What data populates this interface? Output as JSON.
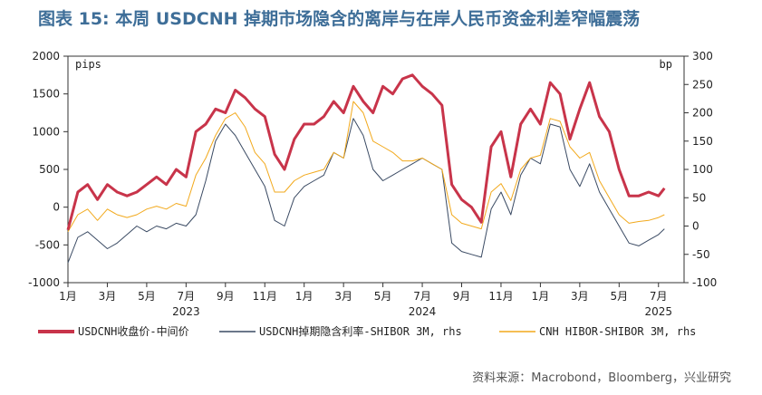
{
  "title": "图表 15: 本周 USDCNH 掉期市场隐含的离岸与在岸人民币资金利差窄幅震荡",
  "source": "资料来源：Macrobond，Bloomberg，兴业研究",
  "colors": {
    "series1": "#c8344a",
    "series2": "#3a4a63",
    "series3": "#f2a91c"
  },
  "chart_data": {
    "type": "line",
    "left_axis": {
      "unit": "pips",
      "min": -1000,
      "max": 2000,
      "ticks": [
        2000,
        1500,
        1000,
        500,
        0,
        -500,
        -1000
      ]
    },
    "right_axis": {
      "unit": "bp",
      "min": -100,
      "max": 300,
      "ticks": [
        300,
        250,
        200,
        150,
        100,
        50,
        0,
        -50,
        -100
      ]
    },
    "x_ticks": [
      "1月",
      "3月",
      "5月",
      "7月",
      "9月",
      "11月",
      "1月",
      "3月",
      "5月",
      "7月",
      "9月",
      "11月",
      "1月",
      "3月",
      "5月",
      "7月"
    ],
    "x_ticks_month": [
      0,
      2,
      4,
      6,
      8,
      10,
      12,
      14,
      16,
      18,
      20,
      22,
      24,
      26,
      28,
      30
    ],
    "year_labels": [
      "2023",
      "2024",
      "2025"
    ],
    "year_labels_month": [
      6,
      18,
      30
    ],
    "x_unit": "months since Jan 2023",
    "series": [
      {
        "name": "USDCNH收盘价-中间价",
        "axis": "left",
        "x": [
          0,
          0.5,
          1,
          1.5,
          2,
          2.5,
          3,
          3.5,
          4,
          4.5,
          5,
          5.5,
          6,
          6.5,
          7,
          7.5,
          8,
          8.5,
          9,
          9.5,
          10,
          10.5,
          11,
          11.5,
          12,
          12.5,
          13,
          13.5,
          14,
          14.5,
          15,
          15.5,
          16,
          16.5,
          17,
          17.5,
          18,
          18.5,
          19,
          19.5,
          20,
          20.5,
          21,
          21.5,
          22,
          22.5,
          23,
          23.5,
          24,
          24.5,
          25,
          25.5,
          26,
          26.5,
          27,
          27.5,
          28,
          28.5,
          29,
          29.5,
          30,
          30.3
        ],
        "y": [
          -300,
          200,
          300,
          100,
          300,
          200,
          150,
          200,
          300,
          400,
          300,
          500,
          400,
          1000,
          1100,
          1300,
          1250,
          1550,
          1450,
          1300,
          1200,
          700,
          500,
          900,
          1100,
          1100,
          1200,
          1400,
          1250,
          1600,
          1400,
          1250,
          1600,
          1500,
          1700,
          1750,
          1600,
          1500,
          1350,
          300,
          100,
          0,
          -200,
          800,
          1000,
          400,
          1100,
          1300,
          1100,
          1650,
          1500,
          900,
          1300,
          1650,
          1200,
          1000,
          500,
          150,
          150,
          200,
          150,
          250
        ]
      },
      {
        "name": "USDCNH掉期隐含利率-SHIBOR 3M, rhs",
        "axis": "right",
        "x": [
          0,
          0.5,
          1,
          1.5,
          2,
          2.5,
          3,
          3.5,
          4,
          4.5,
          5,
          5.5,
          6,
          6.5,
          7,
          7.5,
          8,
          8.5,
          9,
          9.5,
          10,
          10.5,
          11,
          11.5,
          12,
          12.5,
          13,
          13.5,
          14,
          14.5,
          15,
          15.5,
          16,
          16.5,
          17,
          17.5,
          18,
          18.5,
          19,
          19.5,
          20,
          20.5,
          21,
          21.5,
          22,
          22.5,
          23,
          23.5,
          24,
          24.5,
          25,
          25.5,
          26,
          26.5,
          27,
          27.5,
          28,
          28.5,
          29,
          29.5,
          30,
          30.3
        ],
        "y": [
          -65,
          -20,
          -10,
          -25,
          -40,
          -30,
          -15,
          0,
          -10,
          0,
          -5,
          5,
          0,
          20,
          80,
          150,
          180,
          160,
          130,
          100,
          70,
          10,
          0,
          50,
          70,
          80,
          90,
          130,
          120,
          190,
          160,
          100,
          80,
          90,
          100,
          110,
          120,
          110,
          100,
          -30,
          -45,
          -50,
          -55,
          30,
          60,
          20,
          90,
          120,
          110,
          180,
          175,
          100,
          70,
          110,
          60,
          30,
          0,
          -30,
          -35,
          -25,
          -15,
          -5
        ]
      },
      {
        "name": "CNH HIBOR-SHIBOR 3M, rhs",
        "axis": "right",
        "x": [
          0,
          0.5,
          1,
          1.5,
          2,
          2.5,
          3,
          3.5,
          4,
          4.5,
          5,
          5.5,
          6,
          6.5,
          7,
          7.5,
          8,
          8.5,
          9,
          9.5,
          10,
          10.5,
          11,
          11.5,
          12,
          12.5,
          13,
          13.5,
          14,
          14.5,
          15,
          15.5,
          16,
          16.5,
          17,
          17.5,
          18,
          18.5,
          19,
          19.5,
          20,
          20.5,
          21,
          21.5,
          22,
          22.5,
          23,
          23.5,
          24,
          24.5,
          25,
          25.5,
          26,
          26.5,
          27,
          27.5,
          28,
          28.5,
          29,
          29.5,
          30,
          30.3
        ],
        "y": [
          -10,
          20,
          30,
          10,
          30,
          20,
          15,
          20,
          30,
          35,
          30,
          40,
          35,
          90,
          120,
          160,
          190,
          200,
          175,
          130,
          110,
          60,
          60,
          80,
          90,
          95,
          100,
          130,
          120,
          220,
          200,
          150,
          140,
          130,
          115,
          115,
          120,
          110,
          100,
          20,
          5,
          0,
          -5,
          60,
          75,
          45,
          100,
          120,
          125,
          190,
          185,
          140,
          120,
          130,
          80,
          50,
          20,
          5,
          8,
          10,
          15,
          20
        ]
      }
    ]
  }
}
